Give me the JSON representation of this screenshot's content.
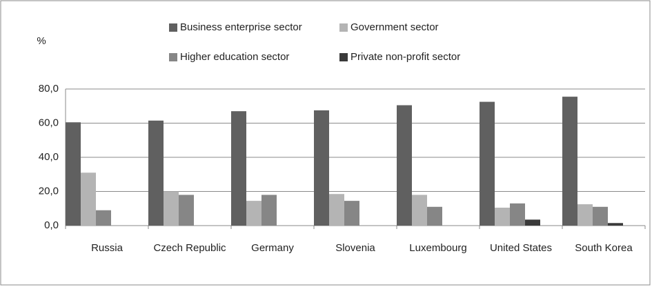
{
  "chart_data": {
    "type": "bar",
    "ylabel": "%",
    "categories": [
      "Russia",
      "Czech Republic",
      "Germany",
      "Slovenia",
      "Luxembourg",
      "United States",
      "South Korea"
    ],
    "series": [
      {
        "name": "Business enterprise sector",
        "color": "#606060",
        "values": [
          60.5,
          61.5,
          67,
          67.5,
          70.5,
          72.5,
          75.5
        ]
      },
      {
        "name": "Government sector",
        "color": "#b4b4b4",
        "values": [
          31,
          20,
          14.5,
          18.5,
          18,
          10.5,
          12.5
        ]
      },
      {
        "name": "Higher education sector",
        "color": "#868686",
        "values": [
          9,
          18,
          18,
          14.5,
          11,
          13,
          11
        ]
      },
      {
        "name": "Private non-profit sector",
        "color": "#3a3a3a",
        "values": [
          0,
          0,
          0,
          0,
          0,
          3.5,
          1.5
        ]
      }
    ],
    "ylim": [
      0,
      80
    ],
    "yticks": [
      {
        "value": 0,
        "label": "0,0"
      },
      {
        "value": 20,
        "label": "20,0"
      },
      {
        "value": 40,
        "label": "40,0"
      },
      {
        "value": 60,
        "label": "60,0"
      },
      {
        "value": 80,
        "label": "80,0"
      }
    ],
    "grid": true
  }
}
